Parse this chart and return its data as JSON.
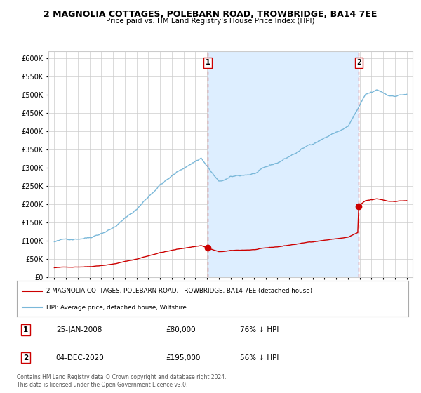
{
  "title": "2 MAGNOLIA COTTAGES, POLEBARN ROAD, TROWBRIDGE, BA14 7EE",
  "subtitle": "Price paid vs. HM Land Registry's House Price Index (HPI)",
  "legend_line1": "2 MAGNOLIA COTTAGES, POLEBARN ROAD, TROWBRIDGE, BA14 7EE (detached house)",
  "legend_line2": "HPI: Average price, detached house, Wiltshire",
  "transaction1_date": "25-JAN-2008",
  "transaction1_price": "£80,000",
  "transaction1_hpi": "76% ↓ HPI",
  "transaction2_date": "04-DEC-2020",
  "transaction2_price": "£195,000",
  "transaction2_hpi": "56% ↓ HPI",
  "footnote": "Contains HM Land Registry data © Crown copyright and database right 2024.\nThis data is licensed under the Open Government Licence v3.0.",
  "hpi_color": "#7ab8d9",
  "price_color": "#cc0000",
  "shade_color": "#ddeeff",
  "plot_bg": "#ffffff",
  "grid_color": "#cccccc",
  "border_color": "#aaaaaa",
  "ylim": [
    0,
    620000
  ],
  "yticks": [
    0,
    50000,
    100000,
    150000,
    200000,
    250000,
    300000,
    350000,
    400000,
    450000,
    500000,
    550000,
    600000
  ],
  "x_start_year": 1995,
  "x_end_year": 2025,
  "transaction1_year": 2008.07,
  "transaction2_year": 2020.92
}
